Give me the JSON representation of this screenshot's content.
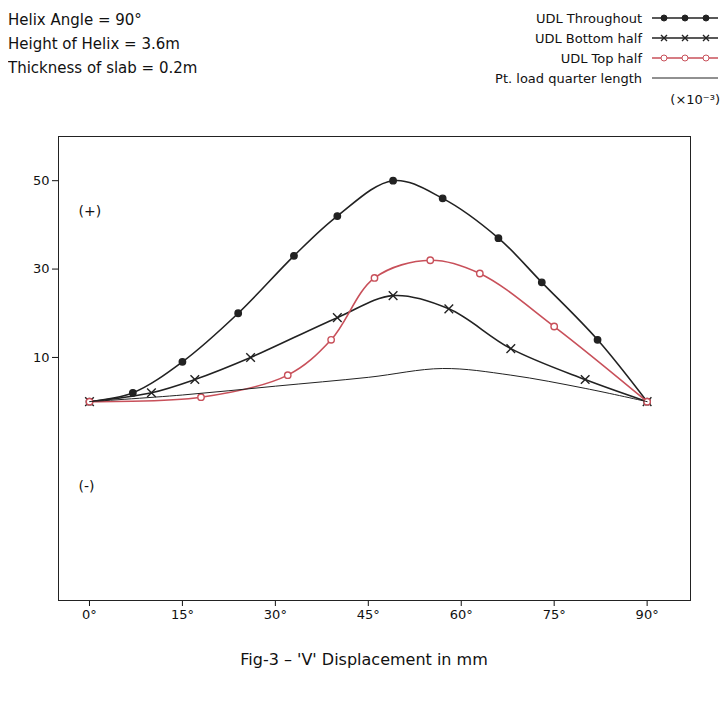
{
  "chart_data": {
    "type": "line",
    "title": "Fig-3 – 'V' Displacement in mm",
    "notes": [
      "Helix Angle = 90°",
      "Height of Helix = 3.6m",
      "Thickness of slab = 0.2m"
    ],
    "annotations": [
      "(+)",
      "(-)"
    ],
    "y_unit": "(×10⁻³)",
    "xlim": [
      -5,
      97
    ],
    "xticks": [
      {
        "value": 0,
        "label": "0°"
      },
      {
        "value": 15,
        "label": "15°"
      },
      {
        "value": 30,
        "label": "30°"
      },
      {
        "value": 45,
        "label": "45°"
      },
      {
        "value": 60,
        "label": "60°"
      },
      {
        "value": 75,
        "label": "75°"
      },
      {
        "value": 90,
        "label": "90°"
      }
    ],
    "ylim": [
      -45,
      60
    ],
    "yticks": [
      10,
      30,
      50
    ],
    "grid": false,
    "legend": "top-right",
    "series": [
      {
        "name": "UDL Throughout",
        "color": "#222222",
        "marker": "dot",
        "line_style": "solid",
        "x": [
          0,
          7,
          15,
          24,
          33,
          40,
          49,
          57,
          66,
          73,
          82,
          90
        ],
        "values": [
          0,
          2,
          9,
          20,
          33,
          42,
          50,
          46,
          37,
          27,
          14,
          0
        ]
      },
      {
        "name": "UDL Bottom half",
        "color": "#222222",
        "marker": "cross",
        "line_style": "solid",
        "x": [
          0,
          10,
          17,
          26,
          40,
          49,
          58,
          68,
          80,
          90
        ],
        "values": [
          0,
          2,
          5,
          10,
          19,
          24,
          21,
          12,
          5,
          0
        ]
      },
      {
        "name": "UDL Top half",
        "color": "#c8505a",
        "marker": "circle",
        "line_style": "solid",
        "x": [
          0,
          18,
          32,
          39,
          46,
          55,
          63,
          75,
          90
        ],
        "values": [
          0,
          1,
          6,
          14,
          28,
          32,
          29,
          17,
          0
        ]
      },
      {
        "name": "Pt. load quarter length",
        "color": "#222222",
        "marker": "none",
        "line_style": "solid",
        "x": [
          0,
          15,
          30,
          45,
          57,
          68,
          80,
          90
        ],
        "values": [
          0,
          1.5,
          3.5,
          5.5,
          7.5,
          6,
          3,
          0
        ]
      }
    ]
  }
}
